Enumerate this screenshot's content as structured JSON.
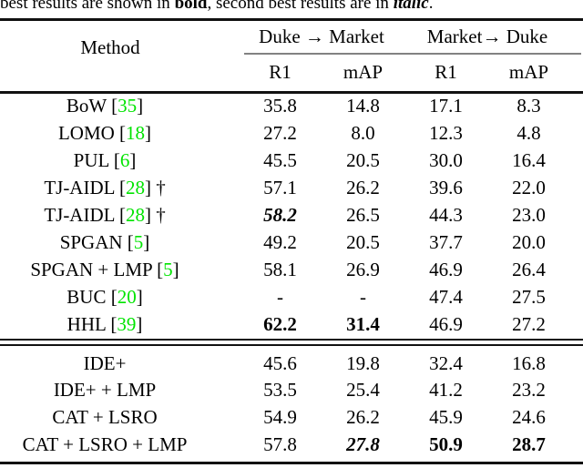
{
  "caption": {
    "prefix": "best results are shown in ",
    "bold_word": "bold",
    "middle": ", second best results are in ",
    "italic_word": "italic",
    "suffix": "."
  },
  "colors": {
    "citation_green": "#00E400",
    "rule_black": "#111111",
    "cmidrule_gray": "#828282"
  },
  "table": {
    "header": {
      "method_label": "Method",
      "group1_label": "Duke → Market",
      "group2_label": "Market→ Duke",
      "sub_r1_a": "R1",
      "sub_map_a": "mAP",
      "sub_r1_b": "R1",
      "sub_map_b": "mAP"
    },
    "sections": [
      {
        "rows": [
          {
            "method": "BoW",
            "cite": "35",
            "dagger": false,
            "values": [
              {
                "t": "35.8"
              },
              {
                "t": "14.8"
              },
              {
                "t": "17.1"
              },
              {
                "t": "8.3"
              }
            ]
          },
          {
            "method": "LOMO",
            "cite": "18",
            "dagger": false,
            "values": [
              {
                "t": "27.2"
              },
              {
                "t": "8.0"
              },
              {
                "t": "12.3"
              },
              {
                "t": "4.8"
              }
            ]
          },
          {
            "method": "PUL",
            "cite": "6",
            "dagger": false,
            "values": [
              {
                "t": "45.5"
              },
              {
                "t": "20.5"
              },
              {
                "t": "30.0"
              },
              {
                "t": "16.4"
              }
            ]
          },
          {
            "method": "TJ-AIDL",
            "cite": "28",
            "dagger": true,
            "values": [
              {
                "t": "57.1"
              },
              {
                "t": "26.2"
              },
              {
                "t": "39.6"
              },
              {
                "t": "22.0"
              }
            ]
          },
          {
            "method": "TJ-AIDL",
            "cite": "28",
            "dagger": true,
            "values": [
              {
                "t": "58.2",
                "s": "bi"
              },
              {
                "t": "26.5"
              },
              {
                "t": "44.3"
              },
              {
                "t": "23.0"
              }
            ]
          },
          {
            "method": "SPGAN",
            "cite": "5",
            "dagger": false,
            "values": [
              {
                "t": "49.2"
              },
              {
                "t": "20.5"
              },
              {
                "t": "37.7"
              },
              {
                "t": "20.0"
              }
            ]
          },
          {
            "method": "SPGAN + LMP",
            "cite": "5",
            "dagger": false,
            "values": [
              {
                "t": "58.1"
              },
              {
                "t": "26.9"
              },
              {
                "t": "46.9"
              },
              {
                "t": "26.4"
              }
            ]
          },
          {
            "method": "BUC",
            "cite": "20",
            "dagger": false,
            "values": [
              {
                "t": "-"
              },
              {
                "t": "-"
              },
              {
                "t": "47.4"
              },
              {
                "t": "27.5"
              }
            ]
          },
          {
            "method": "HHL",
            "cite": "39",
            "dagger": false,
            "values": [
              {
                "t": "62.2",
                "s": "b"
              },
              {
                "t": "31.4",
                "s": "b"
              },
              {
                "t": "46.9"
              },
              {
                "t": "27.2"
              }
            ]
          }
        ]
      },
      {
        "rows": [
          {
            "method": "IDE+",
            "cite": null,
            "dagger": false,
            "values": [
              {
                "t": "45.6"
              },
              {
                "t": "19.8"
              },
              {
                "t": "32.4"
              },
              {
                "t": "16.8"
              }
            ]
          },
          {
            "method": "IDE+ + LMP",
            "cite": null,
            "dagger": false,
            "values": [
              {
                "t": "53.5"
              },
              {
                "t": "25.4"
              },
              {
                "t": "41.2"
              },
              {
                "t": "23.2"
              }
            ]
          },
          {
            "method": "CAT + LSRO",
            "cite": null,
            "dagger": false,
            "values": [
              {
                "t": "54.9"
              },
              {
                "t": "26.2"
              },
              {
                "t": "45.9"
              },
              {
                "t": "24.6"
              }
            ]
          },
          {
            "method": "CAT + LSRO + LMP",
            "cite": null,
            "dagger": false,
            "values": [
              {
                "t": "57.8"
              },
              {
                "t": "27.8",
                "s": "bi"
              },
              {
                "t": "50.9",
                "s": "b"
              },
              {
                "t": "28.7",
                "s": "b"
              }
            ]
          }
        ]
      }
    ]
  }
}
